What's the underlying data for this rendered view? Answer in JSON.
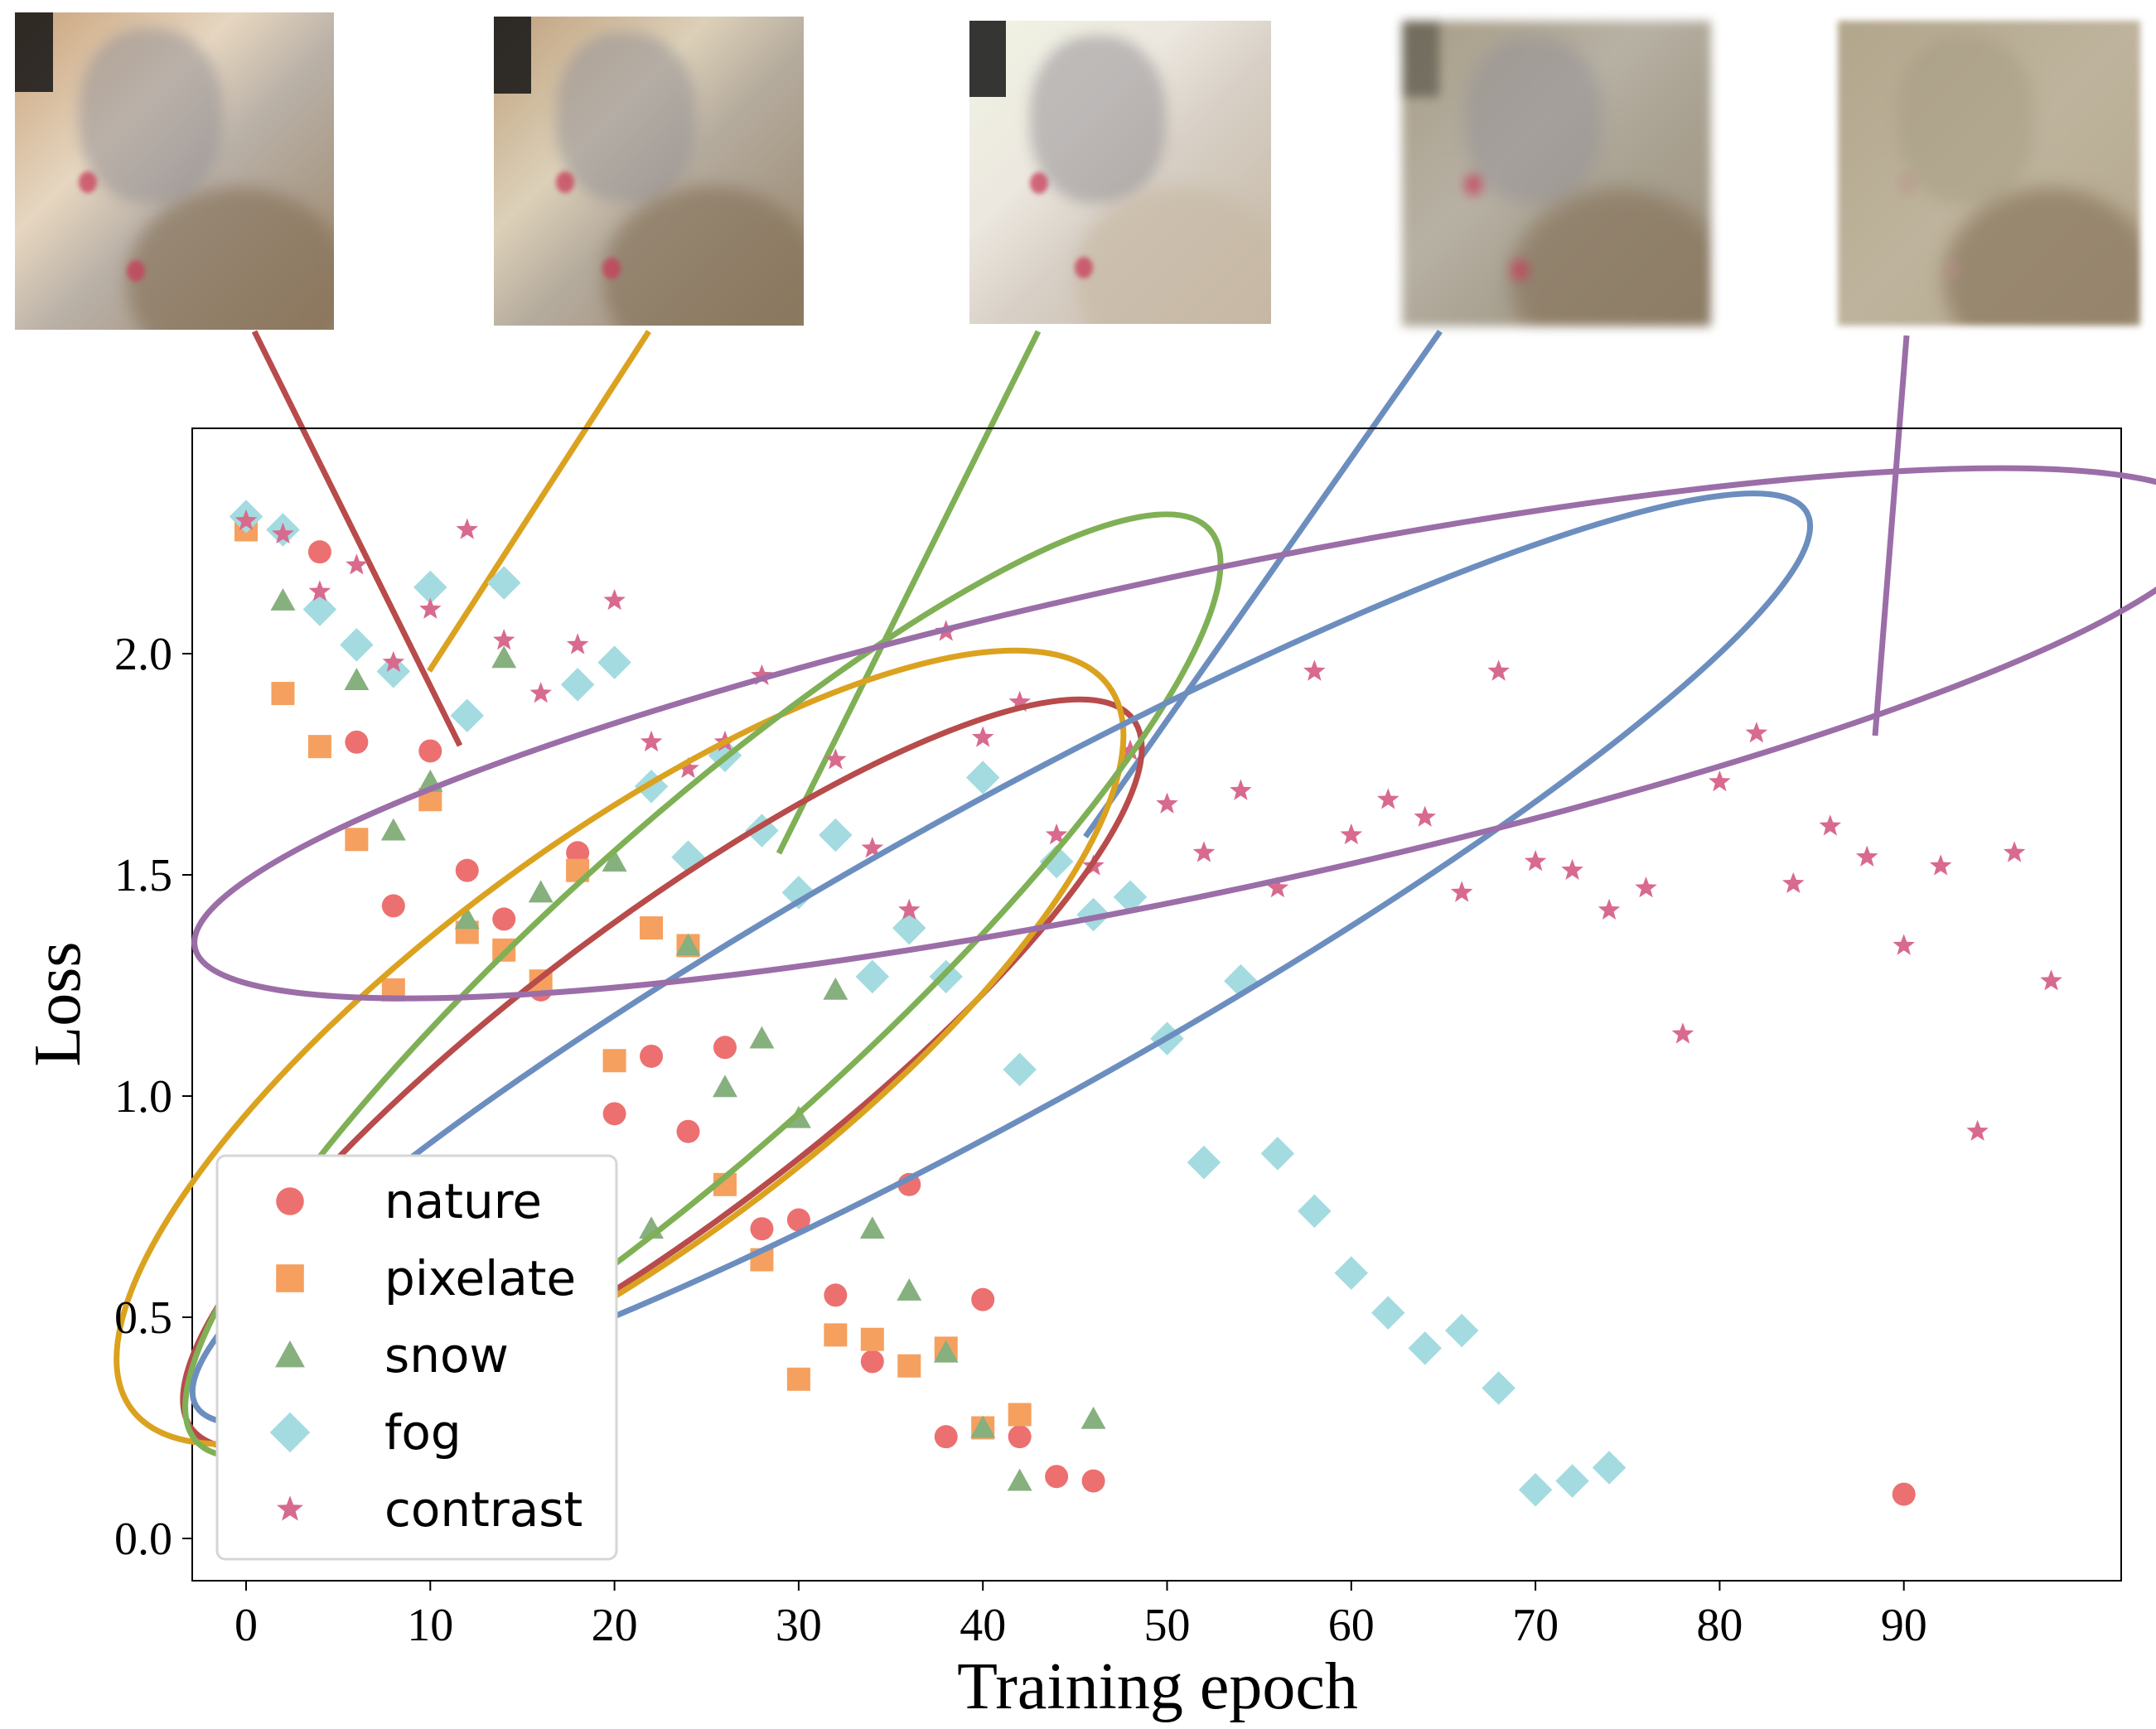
{
  "chart_data": {
    "type": "scatter",
    "title": "",
    "xlabel": "Training epoch",
    "ylabel": "Loss",
    "xlim": [
      -3,
      102
    ],
    "ylim": [
      -0.1,
      2.5
    ],
    "xticks": [
      0,
      10,
      20,
      30,
      40,
      50,
      60,
      70,
      80,
      90
    ],
    "xtick_labels": [
      "0",
      "10",
      "20",
      "30",
      "40",
      "50",
      "60",
      "70",
      "80",
      "90"
    ],
    "yticks": [
      0.0,
      0.5,
      1.0,
      1.5,
      2.0
    ],
    "ytick_labels": [
      "0.0",
      "0.5",
      "1.0",
      "1.5",
      "2.0"
    ],
    "grid": false,
    "legend_position": "lower-left",
    "series": [
      {
        "name": "nature",
        "marker": "circle",
        "color": "#ec7070",
        "points": [
          [
            4,
            2.23
          ],
          [
            6,
            1.8
          ],
          [
            8,
            1.43
          ],
          [
            10,
            1.78
          ],
          [
            12,
            1.51
          ],
          [
            14,
            1.4
          ],
          [
            16,
            1.24
          ],
          [
            18,
            1.55
          ],
          [
            20,
            0.96
          ],
          [
            22,
            1.09
          ],
          [
            24,
            0.92
          ],
          [
            26,
            1.11
          ],
          [
            28,
            0.7
          ],
          [
            30,
            0.72
          ],
          [
            32,
            0.55
          ],
          [
            34,
            0.4
          ],
          [
            36,
            0.8
          ],
          [
            38,
            0.23
          ],
          [
            40,
            0.54
          ],
          [
            42,
            0.23
          ],
          [
            44,
            0.14
          ],
          [
            46,
            0.13
          ],
          [
            90,
            0.1
          ]
        ]
      },
      {
        "name": "pixelate",
        "marker": "square",
        "color": "#f5a05f",
        "points": [
          [
            0,
            2.28
          ],
          [
            2,
            1.91
          ],
          [
            4,
            1.79
          ],
          [
            6,
            1.58
          ],
          [
            8,
            1.24
          ],
          [
            10,
            1.67
          ],
          [
            12,
            1.37
          ],
          [
            14,
            1.33
          ],
          [
            16,
            1.26
          ],
          [
            18,
            1.51
          ],
          [
            20,
            1.08
          ],
          [
            22,
            1.38
          ],
          [
            24,
            1.34
          ],
          [
            26,
            0.8
          ],
          [
            28,
            0.63
          ],
          [
            30,
            0.36
          ],
          [
            32,
            0.46
          ],
          [
            34,
            0.45
          ],
          [
            36,
            0.39
          ],
          [
            38,
            0.43
          ],
          [
            40,
            0.25
          ],
          [
            42,
            0.28
          ]
        ]
      },
      {
        "name": "snow",
        "marker": "triangle",
        "color": "#86b07e",
        "points": [
          [
            2,
            2.12
          ],
          [
            6,
            1.94
          ],
          [
            8,
            1.6
          ],
          [
            10,
            1.71
          ],
          [
            12,
            1.4
          ],
          [
            14,
            1.99
          ],
          [
            16,
            1.46
          ],
          [
            20,
            1.53
          ],
          [
            22,
            0.7
          ],
          [
            24,
            1.34
          ],
          [
            26,
            1.02
          ],
          [
            28,
            1.13
          ],
          [
            30,
            0.95
          ],
          [
            32,
            1.24
          ],
          [
            34,
            0.7
          ],
          [
            36,
            0.56
          ],
          [
            38,
            0.42
          ],
          [
            40,
            0.25
          ],
          [
            42,
            0.13
          ],
          [
            46,
            0.27
          ]
        ]
      },
      {
        "name": "fog",
        "marker": "diamond",
        "color": "#a3dbe0",
        "points": [
          [
            0,
            2.31
          ],
          [
            2,
            2.28
          ],
          [
            4,
            2.1
          ],
          [
            6,
            2.02
          ],
          [
            8,
            1.96
          ],
          [
            10,
            2.15
          ],
          [
            12,
            1.86
          ],
          [
            14,
            2.16
          ],
          [
            18,
            1.93
          ],
          [
            20,
            1.98
          ],
          [
            22,
            1.7
          ],
          [
            24,
            1.54
          ],
          [
            26,
            1.77
          ],
          [
            28,
            1.6
          ],
          [
            30,
            1.46
          ],
          [
            32,
            1.59
          ],
          [
            34,
            1.27
          ],
          [
            36,
            1.38
          ],
          [
            38,
            1.27
          ],
          [
            40,
            1.72
          ],
          [
            42,
            1.06
          ],
          [
            44,
            1.53
          ],
          [
            46,
            1.41
          ],
          [
            48,
            1.45
          ],
          [
            50,
            1.13
          ],
          [
            52,
            0.85
          ],
          [
            54,
            1.26
          ],
          [
            56,
            0.87
          ],
          [
            58,
            0.74
          ],
          [
            60,
            0.6
          ],
          [
            62,
            0.51
          ],
          [
            64,
            0.43
          ],
          [
            66,
            0.47
          ],
          [
            68,
            0.34
          ],
          [
            70,
            0.11
          ],
          [
            72,
            0.13
          ],
          [
            74,
            0.16
          ]
        ]
      },
      {
        "name": "contrast",
        "marker": "star",
        "color": "#d86a8e",
        "points": [
          [
            0,
            2.3
          ],
          [
            2,
            2.27
          ],
          [
            4,
            2.14
          ],
          [
            6,
            2.2
          ],
          [
            8,
            1.98
          ],
          [
            10,
            2.1
          ],
          [
            12,
            2.28
          ],
          [
            14,
            2.03
          ],
          [
            16,
            1.91
          ],
          [
            18,
            2.02
          ],
          [
            20,
            2.12
          ],
          [
            22,
            1.8
          ],
          [
            24,
            1.74
          ],
          [
            26,
            1.8
          ],
          [
            28,
            1.95
          ],
          [
            32,
            1.76
          ],
          [
            34,
            1.56
          ],
          [
            36,
            1.42
          ],
          [
            38,
            2.05
          ],
          [
            40,
            1.81
          ],
          [
            42,
            1.89
          ],
          [
            44,
            1.59
          ],
          [
            46,
            1.52
          ],
          [
            48,
            1.78
          ],
          [
            50,
            1.66
          ],
          [
            52,
            1.55
          ],
          [
            54,
            1.69
          ],
          [
            56,
            1.47
          ],
          [
            58,
            1.96
          ],
          [
            60,
            1.59
          ],
          [
            62,
            1.67
          ],
          [
            64,
            1.63
          ],
          [
            66,
            1.46
          ],
          [
            68,
            1.96
          ],
          [
            70,
            1.53
          ],
          [
            72,
            1.51
          ],
          [
            74,
            1.42
          ],
          [
            76,
            1.47
          ],
          [
            78,
            1.14
          ],
          [
            80,
            1.71
          ],
          [
            82,
            1.82
          ],
          [
            84,
            1.48
          ],
          [
            86,
            1.61
          ],
          [
            88,
            1.54
          ],
          [
            90,
            1.34
          ],
          [
            92,
            1.52
          ],
          [
            94,
            0.92
          ],
          [
            96,
            1.55
          ],
          [
            98,
            1.26
          ]
        ]
      }
    ],
    "ellipses": [
      {
        "name": "nature",
        "color": "#b84b4b",
        "center": [
          22.6,
          1.05
        ],
        "a": 32,
        "b": 0.34,
        "angle_deg": -37
      },
      {
        "name": "pixelate",
        "color": "#dba21f",
        "center": [
          20.3,
          1.11
        ],
        "a": 33,
        "b": 0.46,
        "angle_deg": -36.5
      },
      {
        "name": "snow",
        "color": "#7fb055",
        "center": [
          24.8,
          1.25
        ],
        "a": 37,
        "b": 0.36,
        "angle_deg": -42
      },
      {
        "name": "fog",
        "color": "#6c8ebf",
        "center": [
          41,
          1.31
        ],
        "a": 50,
        "b": 0.34,
        "angle_deg": -29
      },
      {
        "name": "contrast",
        "color": "#9b6ea8",
        "center": [
          52,
          1.82
        ],
        "a": 56,
        "b": 0.36,
        "angle_deg": -12
      }
    ]
  },
  "thumbnails": [
    {
      "label": "nature",
      "tone": "#8e8672",
      "line_color": "#b84b4b"
    },
    {
      "label": "pixelate",
      "tone": "#8a8170",
      "line_color": "#dba21f"
    },
    {
      "label": "snow",
      "tone": "#d9d6c8",
      "line_color": "#7fb055"
    },
    {
      "label": "fog",
      "tone": "#9c9684",
      "line_color": "#6c8ebf"
    },
    {
      "label": "contrast",
      "tone": "#b0a48b",
      "line_color": "#9b6ea8"
    }
  ]
}
